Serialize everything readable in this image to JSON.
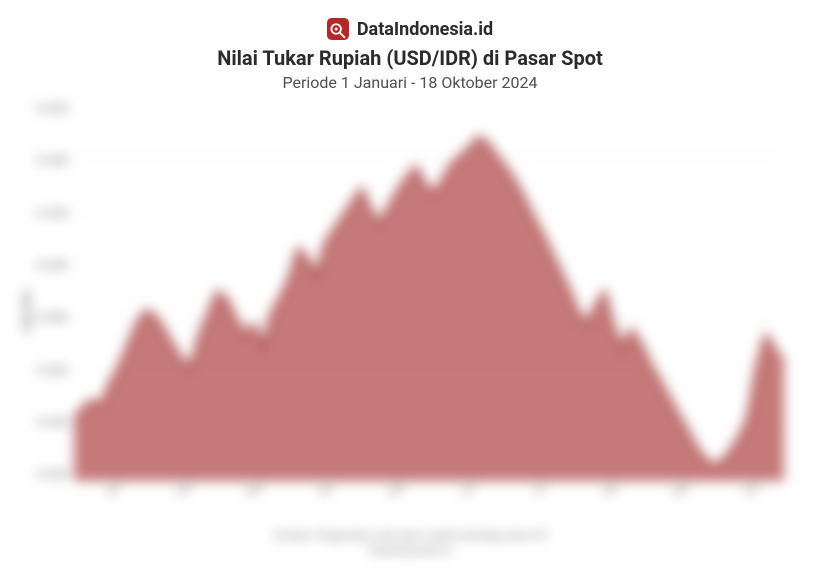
{
  "brand": {
    "name": "DataIndonesia.id",
    "logo_bg": "#b02a2a",
    "logo_fg": "#ffffff"
  },
  "title": "Nilai Tukar Rupiah (USD/IDR) di Pasar Spot",
  "subtitle": "Periode 1 Januari - 18 Oktober 2024",
  "chart": {
    "type": "area",
    "background_color": "#ffffff",
    "fill_color": "#b85b5b",
    "fill_opacity": 0.82,
    "stroke_color": "#a33f3f",
    "stroke_width": 1.5,
    "grid_color": "#e6e6e6",
    "y_axis_title": "USD/IDR",
    "y_lim": [
      15200,
      16600
    ],
    "y_ticks": [
      15200,
      15400,
      15600,
      15800,
      16000,
      16200,
      16400,
      16600
    ],
    "y_tick_labels": [
      "15.200",
      "15.400",
      "15.600",
      "15.800",
      "16.000",
      "16.200",
      "16.400",
      "16.600"
    ],
    "x_labels": [
      "Jan",
      "Feb",
      "Mar",
      "Apr",
      "Mei",
      "Jun",
      "Jul",
      "Agt",
      "Sep",
      "Okt"
    ],
    "label_fontsize": 11,
    "label_color": "#666666",
    "blurred": true,
    "values": [
      15430,
      15470,
      15500,
      15480,
      15560,
      15620,
      15700,
      15780,
      15830,
      15810,
      15760,
      15700,
      15650,
      15620,
      15740,
      15820,
      15900,
      15870,
      15800,
      15740,
      15780,
      15700,
      15820,
      15880,
      15950,
      16060,
      16020,
      15960,
      16080,
      16130,
      16180,
      16230,
      16280,
      16200,
      16150,
      16210,
      16270,
      16320,
      16360,
      16300,
      16260,
      16310,
      16370,
      16400,
      16430,
      16470,
      16450,
      16400,
      16360,
      16310,
      16250,
      16180,
      16120,
      16050,
      15980,
      15910,
      15830,
      15780,
      15840,
      15900,
      15770,
      15690,
      15760,
      15710,
      15640,
      15580,
      15520,
      15460,
      15400,
      15340,
      15290,
      15260,
      15270,
      15310,
      15360,
      15430,
      15620,
      15740,
      15680,
      15640
    ]
  },
  "footer_line1": "Sumber: Pergerakan nilai tukar rupiah terhadap dolar AS",
  "footer_line2": "DataIndonesia.id"
}
